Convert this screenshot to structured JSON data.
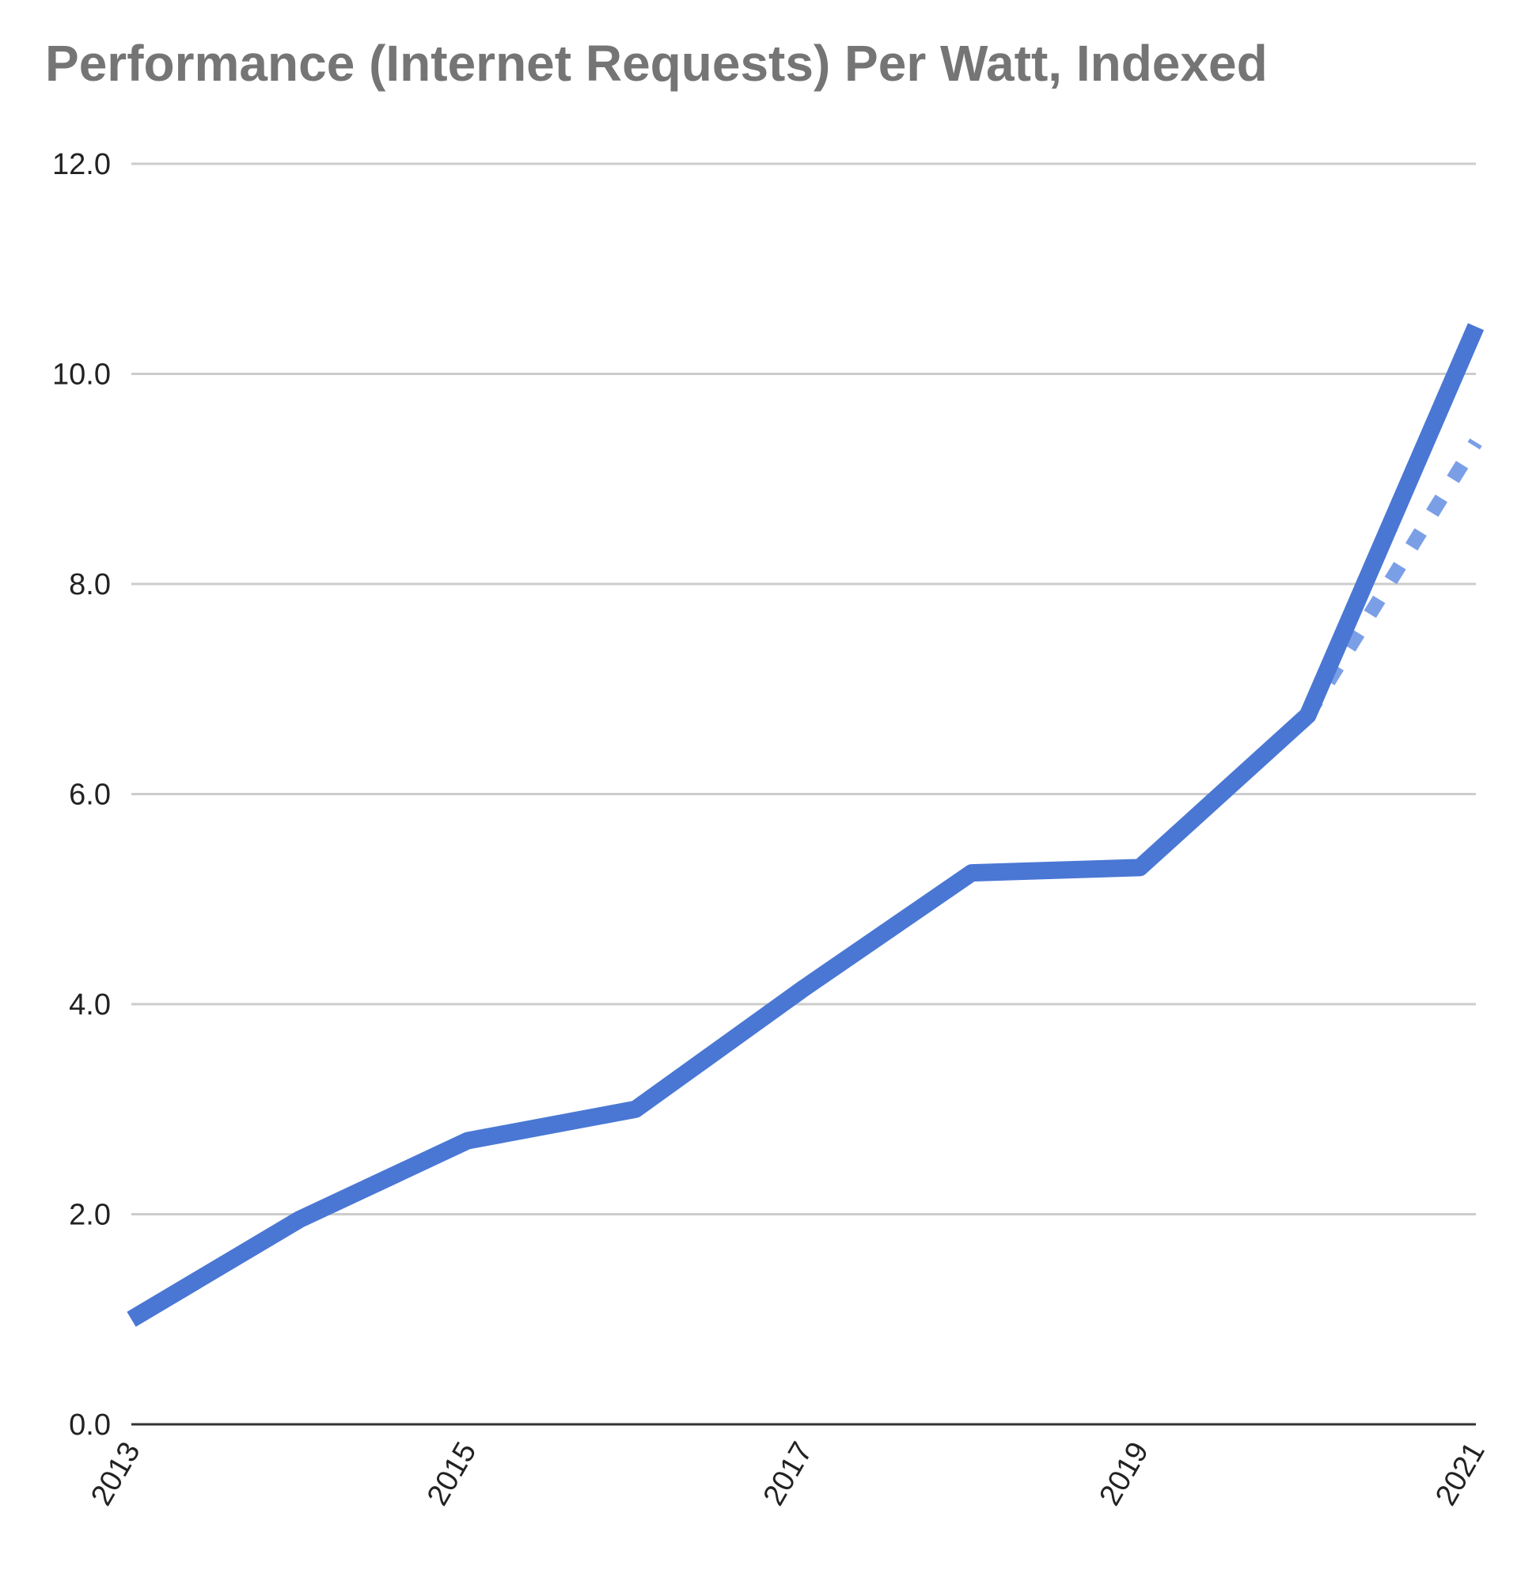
{
  "chart_data": {
    "type": "line",
    "title": "Performance (Internet Requests) Per Watt, Indexed",
    "xlabel": "",
    "ylabel": "",
    "ylim": [
      0,
      12
    ],
    "xlim": [
      2013,
      2021
    ],
    "y_ticks": [
      "0.0",
      "2.0",
      "4.0",
      "6.0",
      "8.0",
      "10.0",
      "12.0"
    ],
    "x_ticks": [
      "2013",
      "2015",
      "2017",
      "2019",
      "2021"
    ],
    "grid": true,
    "legend": "none",
    "series": [
      {
        "style": "solid",
        "color": "#4a77d4",
        "x": [
          2013,
          2014,
          2015,
          2016,
          2017,
          2018,
          2019,
          2020,
          2021
        ],
        "values": [
          1.0,
          1.95,
          2.7,
          3.0,
          4.15,
          5.25,
          5.3,
          6.75,
          10.45
        ]
      },
      {
        "style": "dotted",
        "color": "#7b9fe6",
        "x": [
          2020,
          2021
        ],
        "values": [
          6.75,
          9.35
        ]
      }
    ]
  }
}
